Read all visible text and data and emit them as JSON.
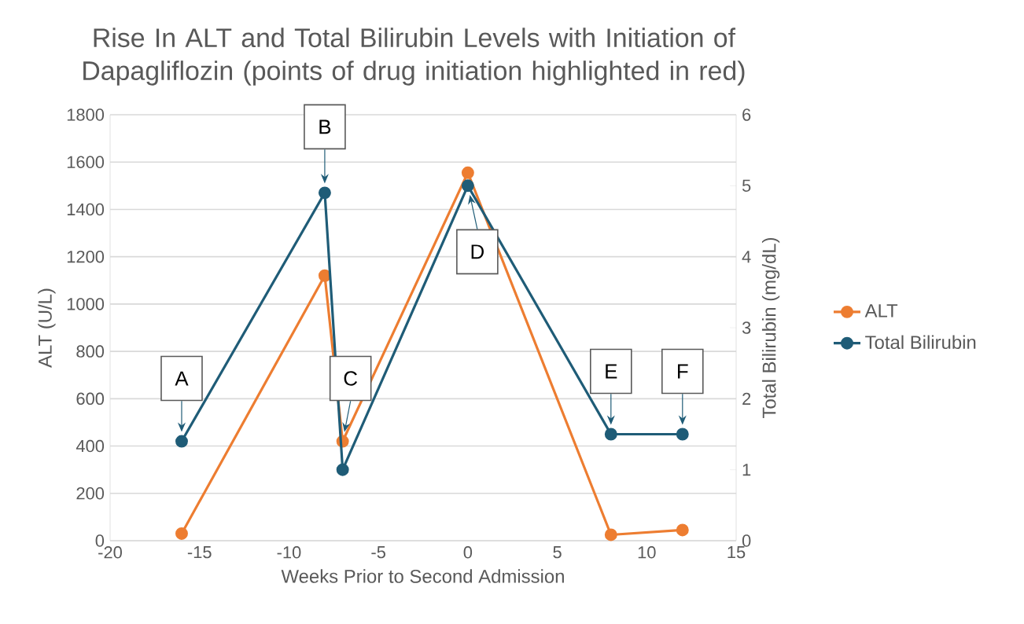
{
  "chart_data": {
    "type": "line",
    "title": "Rise In ALT and Total Bilirubin Levels with Initiation of Dapagliflozin (points of drug initiation highlighted in red)",
    "xlabel": "Weeks Prior to Second Admission",
    "ylabel": "ALT  (U/L)",
    "y2label": "Total Bilirubin (mg/dL)",
    "xlim": [
      -20,
      15
    ],
    "xticks": [
      -20,
      -15,
      -10,
      -5,
      0,
      5,
      10,
      15
    ],
    "ylim": [
      0,
      1800
    ],
    "yticks": [
      0,
      200,
      400,
      600,
      800,
      1000,
      1200,
      1400,
      1600,
      1800
    ],
    "y2lim": [
      0,
      6
    ],
    "y2ticks": [
      0,
      1,
      2,
      3,
      4,
      5,
      6
    ],
    "x": [
      -16,
      -8,
      -7,
      0,
      8,
      12
    ],
    "series": [
      {
        "name": "ALT",
        "color": "#ed7d31",
        "values": [
          30,
          1120,
          420,
          1555,
          25,
          45
        ]
      },
      {
        "name": "Total Bilirubin",
        "color": "#1f5c77",
        "axis": "y2",
        "values": [
          1.4,
          4.9,
          1.0,
          5.0,
          1.5,
          1.5
        ]
      }
    ],
    "annotations": [
      {
        "text": "A",
        "x": -16,
        "y": 420
      },
      {
        "text": "B",
        "x": -8,
        "y": 1470
      },
      {
        "text": "C",
        "x": -7,
        "y": 420
      },
      {
        "text": "D",
        "x": 0,
        "y": 1500
      },
      {
        "text": "E",
        "x": 8,
        "y": 450
      },
      {
        "text": "F",
        "x": 12,
        "y": 450
      }
    ],
    "grid": "y",
    "legend": "right",
    "marker": "circle",
    "line_style": "solid"
  }
}
